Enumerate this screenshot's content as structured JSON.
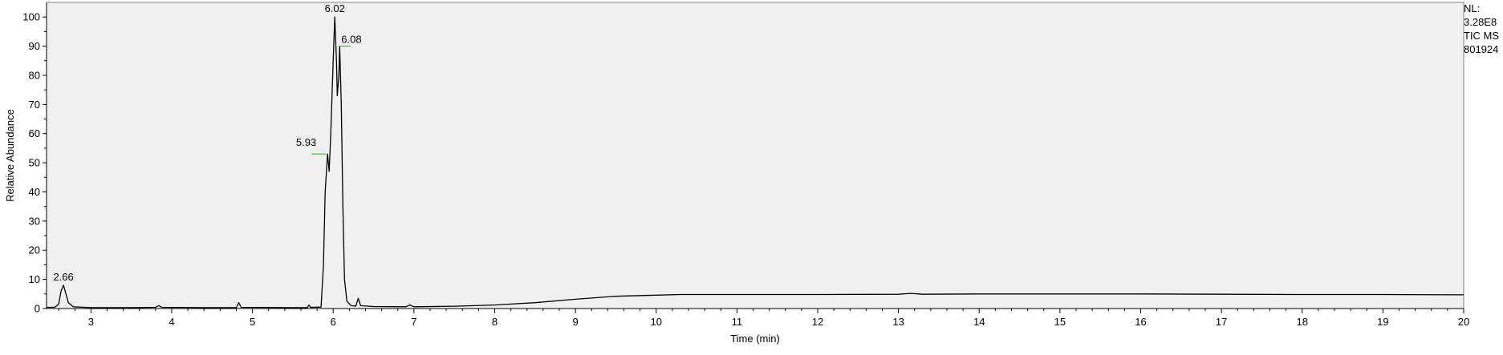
{
  "chart_data": {
    "type": "line",
    "xlabel": "Time (min)",
    "ylabel": "Relative Abundance",
    "xlim": [
      2.45,
      20
    ],
    "ylim": [
      0,
      105
    ],
    "xticks": [
      3,
      4,
      5,
      6,
      7,
      8,
      9,
      10,
      11,
      12,
      13,
      14,
      15,
      16,
      17,
      18,
      19,
      20
    ],
    "yticks": [
      0,
      10,
      20,
      30,
      40,
      50,
      60,
      70,
      80,
      90,
      100
    ],
    "grid": false,
    "legend": "none",
    "info_lines": [
      "NL:",
      "3.28E8",
      "TIC  MS",
      "801924"
    ],
    "colors": {
      "trace": "#000000",
      "plot_bg": "#f0f0f0",
      "peak_leader": "#33aa33",
      "frame": "#808080"
    },
    "peak_labels": [
      {
        "text": "2.66",
        "x": 2.66,
        "y": 8
      },
      {
        "text": "5.93",
        "x": 5.93,
        "y": 53
      },
      {
        "text": "6.02",
        "x": 6.02,
        "y": 100
      },
      {
        "text": "6.08",
        "x": 6.08,
        "y": 90
      }
    ],
    "series": [
      {
        "values": [
          [
            2.45,
            0.4
          ],
          [
            2.55,
            0.4
          ],
          [
            2.6,
            1.5
          ],
          [
            2.63,
            6.0
          ],
          [
            2.66,
            8.0
          ],
          [
            2.69,
            5.0
          ],
          [
            2.72,
            2.0
          ],
          [
            2.78,
            0.6
          ],
          [
            3.0,
            0.3
          ],
          [
            3.5,
            0.3
          ],
          [
            3.8,
            0.4
          ],
          [
            3.84,
            1.0
          ],
          [
            3.88,
            0.4
          ],
          [
            4.4,
            0.3
          ],
          [
            4.8,
            0.3
          ],
          [
            4.83,
            2.0
          ],
          [
            4.86,
            0.4
          ],
          [
            5.5,
            0.3
          ],
          [
            5.68,
            0.3
          ],
          [
            5.7,
            1.2
          ],
          [
            5.72,
            0.4
          ],
          [
            5.85,
            0.5
          ],
          [
            5.88,
            15.0
          ],
          [
            5.9,
            40.0
          ],
          [
            5.93,
            53.0
          ],
          [
            5.95,
            47.0
          ],
          [
            5.97,
            60.0
          ],
          [
            6.0,
            85.0
          ],
          [
            6.02,
            100.0
          ],
          [
            6.04,
            85.0
          ],
          [
            6.05,
            73.0
          ],
          [
            6.07,
            80.0
          ],
          [
            6.08,
            90.0
          ],
          [
            6.1,
            70.0
          ],
          [
            6.12,
            35.0
          ],
          [
            6.14,
            10.0
          ],
          [
            6.17,
            2.5
          ],
          [
            6.22,
            1.0
          ],
          [
            6.28,
            0.8
          ],
          [
            6.31,
            3.5
          ],
          [
            6.34,
            1.0
          ],
          [
            6.5,
            0.7
          ],
          [
            6.9,
            0.6
          ],
          [
            6.95,
            1.2
          ],
          [
            7.0,
            0.6
          ],
          [
            7.5,
            0.8
          ],
          [
            8.0,
            1.2
          ],
          [
            8.5,
            2.0
          ],
          [
            9.0,
            3.2
          ],
          [
            9.5,
            4.2
          ],
          [
            10.0,
            4.6
          ],
          [
            10.3,
            4.8
          ],
          [
            11.0,
            4.8
          ],
          [
            12.0,
            4.8
          ],
          [
            13.0,
            4.9
          ],
          [
            13.15,
            5.2
          ],
          [
            13.3,
            4.9
          ],
          [
            14.0,
            5.0
          ],
          [
            15.0,
            5.0
          ],
          [
            16.0,
            5.0
          ],
          [
            17.0,
            4.9
          ],
          [
            18.0,
            4.8
          ],
          [
            19.0,
            4.8
          ],
          [
            20.0,
            4.7
          ]
        ]
      }
    ]
  }
}
